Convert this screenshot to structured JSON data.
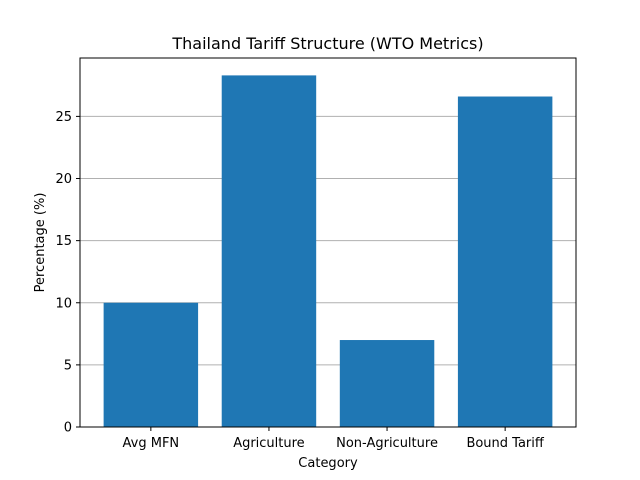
{
  "chart_data": {
    "type": "bar",
    "title": "Thailand Tariff Structure (WTO Metrics)",
    "xlabel": "Category",
    "ylabel": "Percentage (%)",
    "categories": [
      "Avg MFN",
      "Agriculture",
      "Non-Agriculture",
      "Bound Tariff"
    ],
    "values": [
      10.0,
      28.3,
      7.0,
      26.6
    ],
    "ylim": [
      0,
      29.7
    ],
    "yticks": [
      0,
      5,
      10,
      15,
      20,
      25
    ],
    "ytick_labels": [
      "0",
      "5",
      "10",
      "15",
      "20",
      "25"
    ],
    "grid": "y-axis horizontal lines",
    "legend": "none",
    "bar_color": "#1f77b4",
    "grid_color": "#b0b0b0"
  }
}
